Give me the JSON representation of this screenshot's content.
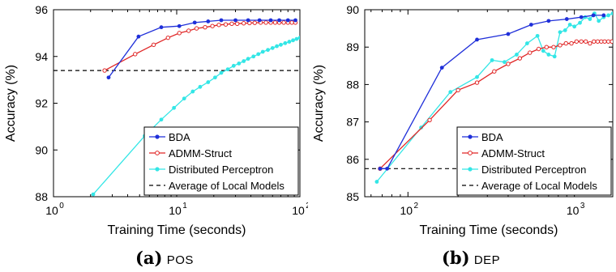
{
  "chart_data": [
    {
      "type": "line",
      "panel_letter": "(a)",
      "panel_name": "POS",
      "xlabel": "Training Time (seconds)",
      "ylabel": "Accuracy (%)",
      "xscale": "log",
      "xlim": [
        1,
        100
      ],
      "ylim": [
        88,
        96
      ],
      "x_ticks": [
        1,
        10,
        100
      ],
      "x_tick_labels": [
        [
          "10",
          "0"
        ],
        [
          "10",
          "1"
        ],
        [
          "10",
          "2"
        ]
      ],
      "y_ticks": [
        88,
        90,
        92,
        94,
        96
      ],
      "y_tick_labels": [
        "88",
        "90",
        "92",
        "94",
        "96"
      ],
      "grid": false,
      "legend_position": "bottom-right",
      "series": [
        {
          "name": "BDA",
          "color": "#1f2fd9",
          "line": "solid",
          "marker": "dot",
          "x": [
            2.8,
            4.9,
            7.5,
            10.5,
            14,
            18,
            23,
            30,
            38,
            47,
            58,
            68,
            80,
            92
          ],
          "y": [
            93.1,
            94.85,
            95.25,
            95.3,
            95.45,
            95.5,
            95.55,
            95.55,
            95.55,
            95.55,
            95.55,
            95.55,
            95.55,
            95.55
          ]
        },
        {
          "name": "ADMM-Struct",
          "color": "#e02626",
          "line": "solid",
          "marker": "open-circle",
          "x": [
            2.6,
            4.6,
            6.5,
            8.5,
            10.5,
            12.5,
            14.5,
            17,
            19.5,
            22,
            25,
            28,
            31,
            35,
            39,
            43,
            48,
            53,
            58,
            63,
            68,
            74,
            80,
            86,
            92
          ],
          "y": [
            93.4,
            94.1,
            94.5,
            94.8,
            95.0,
            95.1,
            95.2,
            95.25,
            95.3,
            95.35,
            95.37,
            95.4,
            95.4,
            95.42,
            95.43,
            95.44,
            95.45,
            95.45,
            95.45,
            95.45,
            95.45,
            95.45,
            95.45,
            95.45,
            95.45
          ]
        },
        {
          "name": "Distributed Perceptron",
          "color": "#33e6e6",
          "line": "solid",
          "marker": "dot",
          "x": [
            2.1,
            5.5,
            7.5,
            9.5,
            11.5,
            13.5,
            15.5,
            18,
            20.5,
            23,
            26,
            29,
            32,
            35,
            38,
            42,
            46,
            50,
            55,
            60,
            65,
            70,
            76,
            82,
            88,
            94,
            100
          ],
          "y": [
            88.1,
            90.6,
            91.3,
            91.8,
            92.2,
            92.5,
            92.7,
            92.9,
            93.1,
            93.3,
            93.45,
            93.6,
            93.7,
            93.8,
            93.9,
            94.0,
            94.1,
            94.2,
            94.28,
            94.36,
            94.44,
            94.5,
            94.57,
            94.63,
            94.69,
            94.75,
            94.8
          ]
        },
        {
          "name": "Average of Local Models",
          "color": "#000000",
          "line": "dashed",
          "marker": "none",
          "x": [
            1,
            100
          ],
          "y": [
            93.4,
            93.4
          ]
        }
      ]
    },
    {
      "type": "line",
      "panel_letter": "(b)",
      "panel_name": "DEP",
      "xlabel": "Training Time (seconds)",
      "ylabel": "Accuracy (%)",
      "xscale": "log",
      "xlim": [
        55,
        1700
      ],
      "ylim": [
        85,
        90
      ],
      "x_ticks": [
        100,
        1000
      ],
      "x_tick_labels": [
        [
          "10",
          "2"
        ],
        [
          "10",
          "3"
        ]
      ],
      "y_ticks": [
        85,
        86,
        87,
        88,
        89,
        90
      ],
      "y_tick_labels": [
        "85",
        "86",
        "87",
        "88",
        "89",
        "90"
      ],
      "grid": false,
      "legend_position": "bottom-right",
      "series": [
        {
          "name": "BDA",
          "color": "#1f2fd9",
          "line": "solid",
          "marker": "dot",
          "x": [
            68,
            75,
            160,
            260,
            400,
            550,
            700,
            900,
            1100,
            1300,
            1500
          ],
          "y": [
            85.75,
            85.75,
            88.45,
            89.2,
            89.35,
            89.6,
            89.7,
            89.75,
            89.8,
            89.85,
            89.85
          ]
        },
        {
          "name": "ADMM-Struct",
          "color": "#e02626",
          "line": "solid",
          "marker": "open-circle",
          "x": [
            68,
            135,
            200,
            260,
            330,
            400,
            470,
            540,
            610,
            680,
            750,
            820,
            890,
            960,
            1030,
            1100,
            1170,
            1240,
            1310,
            1380,
            1450,
            1520,
            1600,
            1680
          ],
          "y": [
            85.75,
            87.05,
            87.85,
            88.05,
            88.35,
            88.55,
            88.7,
            88.85,
            88.95,
            89.0,
            89.0,
            89.05,
            89.1,
            89.1,
            89.15,
            89.15,
            89.15,
            89.1,
            89.15,
            89.15,
            89.15,
            89.15,
            89.15,
            89.15
          ]
        },
        {
          "name": "Distributed Perceptron",
          "color": "#33e6e6",
          "line": "solid",
          "marker": "dot",
          "x": [
            65,
            120,
            180,
            260,
            320,
            380,
            450,
            520,
            600,
            650,
            700,
            760,
            820,
            880,
            940,
            1000,
            1080,
            1160,
            1240,
            1320,
            1400,
            1500,
            1600,
            1700
          ],
          "y": [
            85.4,
            86.85,
            87.8,
            88.2,
            88.65,
            88.6,
            88.8,
            89.1,
            89.3,
            88.9,
            88.8,
            88.75,
            89.4,
            89.45,
            89.6,
            89.55,
            89.65,
            89.8,
            89.75,
            89.9,
            89.7,
            89.8,
            89.85,
            89.9
          ]
        },
        {
          "name": "Average of Local Models",
          "color": "#000000",
          "line": "dashed",
          "marker": "none",
          "x": [
            55,
            1700
          ],
          "y": [
            85.75,
            85.75
          ]
        }
      ]
    }
  ]
}
